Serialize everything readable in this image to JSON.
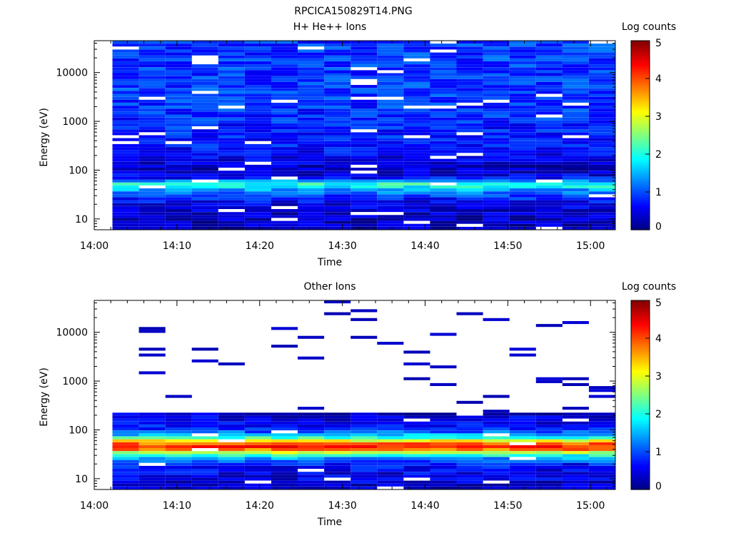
{
  "figure_title": "RPCICA150829T14.PNG",
  "colors": {
    "colormap": [
      "#00007f",
      "#0000ff",
      "#007fff",
      "#00ffff",
      "#7fff7f",
      "#ffff00",
      "#ff7f00",
      "#ff0000",
      "#7f0000"
    ],
    "axis": "#000000",
    "background": "#ffffff"
  },
  "chart_data": [
    {
      "type": "heatmap",
      "title": "H+ He++ Ions",
      "xlabel": "Time",
      "ylabel": "Energy (eV)",
      "colorbar_label": "Log counts",
      "colorbar_ticks": [
        "0",
        "1",
        "2",
        "3",
        "4",
        "5"
      ],
      "colorbar_range": [
        0,
        5
      ],
      "x_ticks": [
        "14:00",
        "14:10",
        "14:20",
        "14:30",
        "14:40",
        "14:50",
        "15:00"
      ],
      "x_range_minutes": [
        0,
        63
      ],
      "y_scale": "log",
      "y_ticks": [
        "10",
        "100",
        "1000",
        "10000"
      ],
      "y_range": [
        6,
        45000
      ],
      "time_bins_minutes": [
        2.2,
        5.4,
        8.6,
        11.8,
        15.0,
        18.2,
        21.4,
        24.6,
        27.8,
        31.0,
        34.2,
        37.4,
        40.6,
        43.8,
        47.0,
        50.2,
        53.4,
        56.6,
        59.8,
        63.0
      ],
      "background_level": 0.9,
      "energy_band_profile": [
        {
          "energy": 7,
          "level": 0.3
        },
        {
          "energy": 10,
          "level": 0.35
        },
        {
          "energy": 14,
          "level": 0.4
        },
        {
          "energy": 20,
          "level": 0.5
        },
        {
          "energy": 28,
          "level": 0.8
        },
        {
          "energy": 35,
          "level": 1.2
        },
        {
          "energy": 42,
          "level": 1.6
        },
        {
          "energy": 50,
          "level": 2.2
        },
        {
          "energy": 58,
          "level": 1.5
        },
        {
          "energy": 70,
          "level": 0.6
        },
        {
          "energy": 100,
          "level": 0.3
        },
        {
          "energy": 300,
          "level": 0.7
        },
        {
          "energy": 3000,
          "level": 0.9
        },
        {
          "energy": 40000,
          "level": 0.9
        }
      ]
    },
    {
      "type": "heatmap",
      "title": "Other Ions",
      "xlabel": "Time",
      "ylabel": "Energy (eV)",
      "colorbar_label": "Log counts",
      "colorbar_ticks": [
        "0",
        "1",
        "2",
        "3",
        "4",
        "5"
      ],
      "colorbar_range": [
        0,
        5
      ],
      "x_ticks": [
        "14:00",
        "14:10",
        "14:20",
        "14:30",
        "14:40",
        "14:50",
        "15:00"
      ],
      "x_range_minutes": [
        0,
        63
      ],
      "y_scale": "log",
      "y_ticks": [
        "10",
        "100",
        "1000",
        "10000"
      ],
      "y_range": [
        6,
        45000
      ],
      "time_bins_minutes": [
        2.2,
        5.4,
        8.6,
        11.8,
        15.0,
        18.2,
        21.4,
        24.6,
        27.8,
        31.0,
        34.2,
        37.4,
        40.6,
        43.8,
        47.0,
        50.2,
        53.4,
        56.6,
        59.8,
        63.0
      ],
      "background_level": 0.2,
      "energy_band_profile": [
        {
          "energy": 7,
          "level": 0.4
        },
        {
          "energy": 12,
          "level": 0.5
        },
        {
          "energy": 20,
          "level": 0.7
        },
        {
          "energy": 28,
          "level": 1.6
        },
        {
          "energy": 34,
          "level": 2.8
        },
        {
          "energy": 40,
          "level": 3.9
        },
        {
          "energy": 48,
          "level": 4.3
        },
        {
          "energy": 58,
          "level": 3.3
        },
        {
          "energy": 70,
          "level": 2.0
        },
        {
          "energy": 90,
          "level": 1.1
        },
        {
          "energy": 130,
          "level": 0.6
        },
        {
          "energy": 200,
          "level": 0.4
        },
        {
          "energy": 400,
          "level": 0.2
        },
        {
          "energy": 40000,
          "level": 0.2
        }
      ]
    }
  ]
}
